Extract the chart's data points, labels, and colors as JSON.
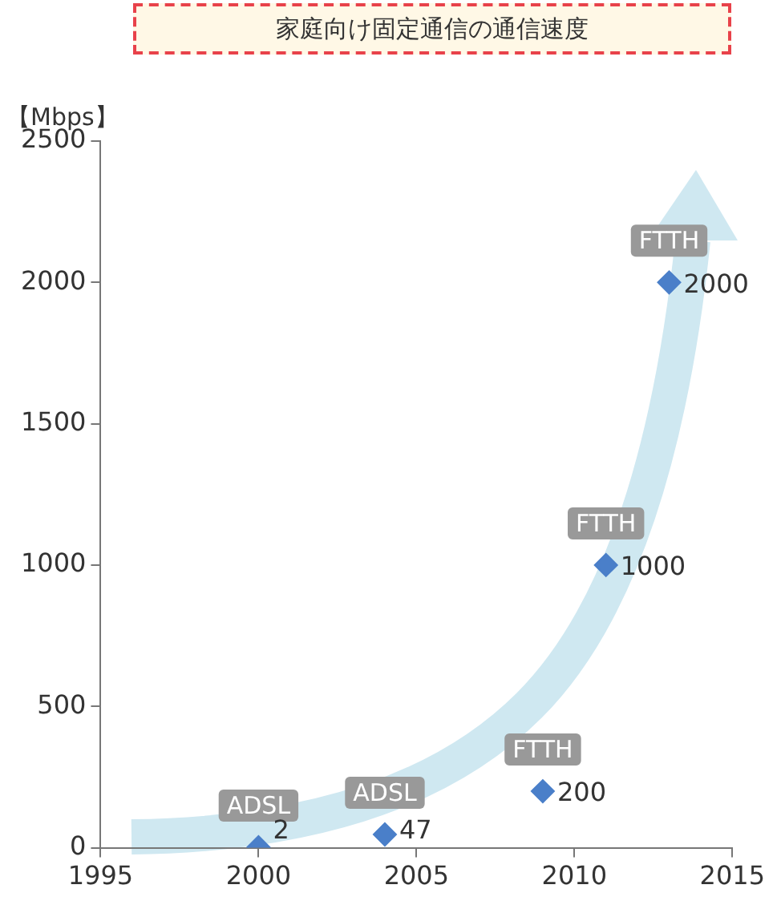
{
  "chart_data": {
    "type": "scatter",
    "title": "家庭向け固定通信の通信速度",
    "ylabel": "【Mbps】",
    "x": [
      2000,
      2004,
      2009,
      2011,
      2013
    ],
    "series": [
      {
        "color": "#4a7fc9",
        "values": [
          2,
          47,
          200,
          1000,
          2000
        ]
      }
    ],
    "xlim": [
      1995,
      2015
    ],
    "xticks": [
      1995,
      2000,
      2005,
      2010,
      2015
    ],
    "ylim": [
      0,
      2500
    ],
    "yticks": [
      0,
      500,
      1000,
      1500,
      2000,
      2500
    ],
    "grid": false,
    "legend": false,
    "marker": "diamond",
    "data_labels": true,
    "annotations": [
      {
        "text": "ADSL",
        "x": 2000,
        "y": 2
      },
      {
        "text": "ADSL",
        "x": 2004,
        "y": 47
      },
      {
        "text": "FTTH",
        "x": 2009,
        "y": 200
      },
      {
        "text": "FTTH",
        "x": 2011,
        "y": 1000
      },
      {
        "text": "FTTH",
        "x": 2013,
        "y": 2000
      }
    ]
  }
}
